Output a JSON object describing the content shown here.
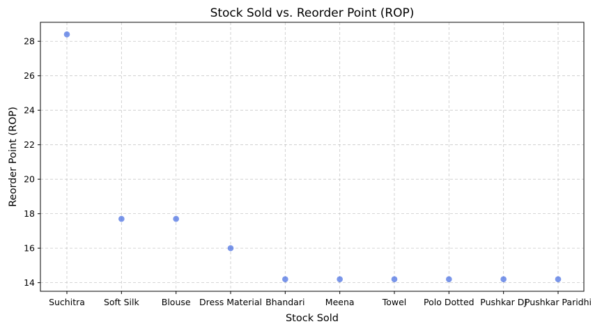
{
  "chart_data": {
    "type": "scatter",
    "title": "Stock Sold vs. Reorder Point (ROP)",
    "xlabel": "Stock Sold",
    "ylabel": "Reorder Point (ROP)",
    "categories": [
      "Suchitra",
      "Soft Silk",
      "Blouse",
      "Dress Material",
      "Bhandari",
      "Meena",
      "Towel",
      "Polo Dotted",
      "Pushkar DJ",
      "Pushkar Paridhi"
    ],
    "values": [
      28.4,
      17.7,
      17.7,
      16.0,
      14.2,
      14.2,
      14.2,
      14.2,
      14.2,
      14.2
    ],
    "ylim": [
      13.5,
      29.1
    ],
    "yticks": [
      14,
      16,
      18,
      20,
      22,
      24,
      26,
      28
    ],
    "grid": true,
    "point_color": "#4169e1"
  }
}
